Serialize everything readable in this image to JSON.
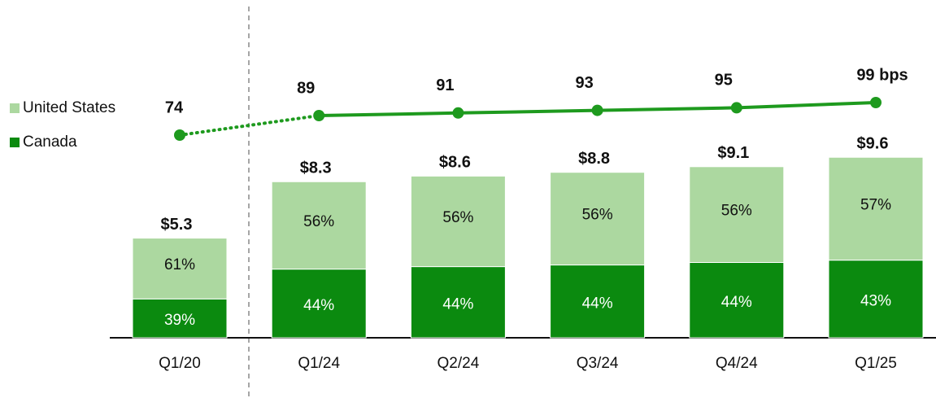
{
  "chart_data": {
    "type": "bar",
    "categories": [
      "Q1/20",
      "Q1/24",
      "Q2/24",
      "Q3/24",
      "Q4/24",
      "Q1/25"
    ],
    "totals": {
      "values": [
        5.3,
        8.3,
        8.6,
        8.8,
        9.1,
        9.6
      ],
      "value_labels": [
        "$5.3",
        "$8.3",
        "$8.6",
        "$8.8",
        "$9.1",
        "$9.6"
      ]
    },
    "series": [
      {
        "name": "Canada",
        "color": "#0b8a0f",
        "values": [
          39,
          44,
          44,
          44,
          44,
          43
        ],
        "value_labels": [
          "39%",
          "44%",
          "44%",
          "44%",
          "44%",
          "43%"
        ]
      },
      {
        "name": "United States",
        "color": "#acd8a0",
        "values": [
          61,
          56,
          56,
          56,
          56,
          57
        ],
        "value_labels": [
          "61%",
          "56%",
          "56%",
          "56%",
          "56%",
          "57%"
        ]
      }
    ],
    "line": {
      "color": "#1e9a1e",
      "values": [
        74,
        89,
        91,
        93,
        95,
        99
      ],
      "value_labels": [
        "74",
        "89",
        "91",
        "93",
        "95",
        "99 bps"
      ]
    },
    "legend": "left"
  }
}
